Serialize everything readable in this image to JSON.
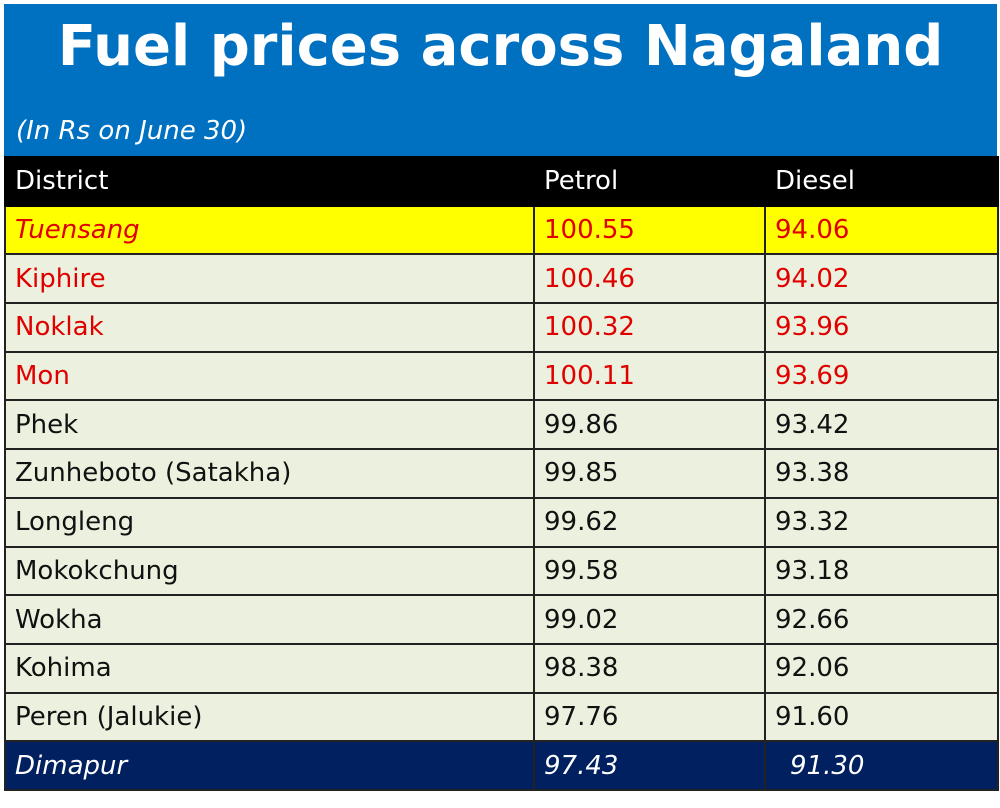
{
  "header": {
    "title": "Fuel prices across Nagaland",
    "subtitle": "(In Rs on June 30)"
  },
  "table": {
    "columns": [
      "District",
      "Petrol",
      "Diesel"
    ],
    "rows": [
      [
        "Tuensang",
        "100.55",
        "94.06"
      ],
      [
        "Kiphire",
        "100.46",
        "94.02"
      ],
      [
        "Noklak",
        "100.32",
        "93.96"
      ],
      [
        "Mon",
        "100.11",
        "93.69"
      ],
      [
        "Phek",
        "99.86",
        "93.42"
      ],
      [
        "Zunheboto (Satakha)",
        "99.85",
        "93.38"
      ],
      [
        "Longleng",
        "99.62",
        "93.32"
      ],
      [
        "Mokokchung",
        "99.58",
        "93.18"
      ],
      [
        "Wokha",
        "99.02",
        "92.66"
      ],
      [
        "Kohima",
        "98.38",
        "92.06"
      ],
      [
        "Peren (Jalukie)",
        "97.76",
        "91.60"
      ],
      [
        "Dimapur",
        "97.43",
        "91.30"
      ]
    ]
  }
}
